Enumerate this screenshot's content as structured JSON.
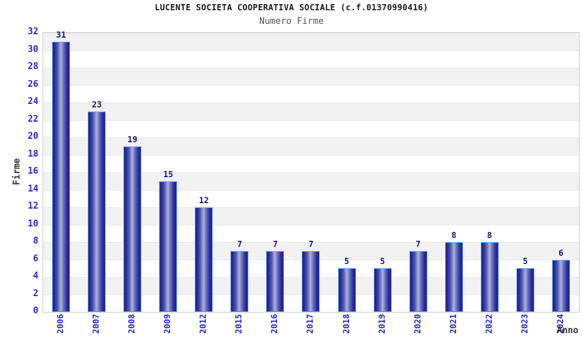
{
  "title": "LUCENTE SOCIETA COOPERATIVA SOCIALE (c.f.01370990416)",
  "subtitle": "Numero Firme",
  "chart_data": {
    "type": "bar",
    "categories": [
      "2006",
      "2007",
      "2008",
      "2009",
      "2012",
      "2015",
      "2016",
      "2017",
      "2018",
      "2019",
      "2020",
      "2021",
      "2022",
      "2023",
      "2024"
    ],
    "values": [
      31,
      23,
      19,
      15,
      12,
      7,
      7,
      7,
      5,
      5,
      7,
      8,
      8,
      5,
      6
    ],
    "title": "LUCENTE SOCIETA COOPERATIVA SOCIALE (c.f.01370990416)",
    "subtitle": "Numero Firme",
    "xlabel": "Anno",
    "ylabel": "Firme",
    "ylim": [
      0,
      32
    ],
    "ytick_step": 2,
    "grid": "horizontal-bands-alternating",
    "legend": "none",
    "bar_labels_shown": true,
    "colors": {
      "bar_dark": "#1c1c8a",
      "bar_highlight": "#aab2de",
      "bar_border": "#4f94e6",
      "tick_label": "#2a2ad0",
      "value_label": "#1b1b70",
      "axis_title": "#333333",
      "title_text": "#1a1a1a",
      "subtitle_text": "#555555",
      "band_gray": "#f2f2f2",
      "band_white": "#ffffff",
      "plot_border": "#cfcfcf"
    }
  }
}
